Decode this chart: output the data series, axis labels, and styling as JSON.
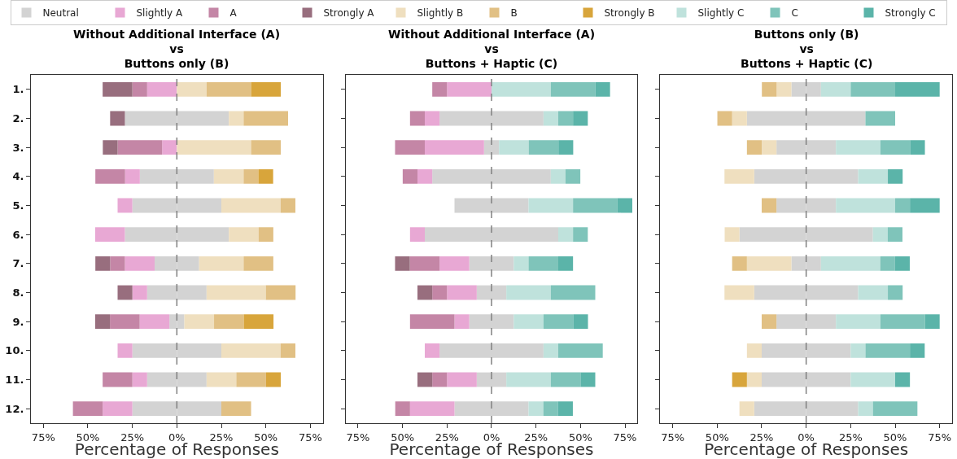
{
  "chart_data": [
    {
      "type": "bar",
      "orientation": "horizontal",
      "stacked": true,
      "title": "Without Additional Interface (A)\nvs\nButtons only (B)",
      "xlabel": "Percentage of Responses",
      "categories": [
        "1.",
        "2.",
        "3.",
        "4.",
        "5.",
        "6.",
        "7.",
        "8.",
        "9.",
        "10.",
        "11.",
        "12."
      ],
      "series": [
        {
          "name": "Neutral",
          "color": "#d3d3d3",
          "values": [
            null,
            -29.2,
            null,
            -20.8,
            -25,
            -29.2,
            -12.5,
            -16.7,
            -4.2,
            -25,
            -16.7,
            -25
          ]
        },
        {
          "name": "Slightly A",
          "color": "#e8a8d4",
          "values": [
            -16.7,
            null,
            -8.3,
            -8.3,
            -8.3,
            -16.7,
            -16.7,
            -8.3,
            -16.7,
            -8.3,
            -8.3,
            -16.7
          ]
        },
        {
          "name": "A",
          "color": "#c486a6",
          "values": [
            -8.3,
            null,
            -25,
            -16.7,
            null,
            null,
            -8.3,
            null,
            -16.7,
            null,
            -16.7,
            -16.7
          ]
        },
        {
          "name": "Strongly A",
          "color": "#986e7e",
          "values": [
            -16.7,
            -8.3,
            -8.3,
            null,
            null,
            null,
            -8.3,
            -8.3,
            -8.3,
            null,
            null,
            null
          ]
        },
        {
          "color": "#d3d3d3",
          "values": [
            null,
            29.2,
            null,
            20.8,
            25,
            29.2,
            12.5,
            16.7,
            4.2,
            25,
            16.7,
            25
          ]
        },
        {
          "name": "Slightly B",
          "color": "#efdfbf",
          "values": [
            16.7,
            8.3,
            41.7,
            16.7,
            33.3,
            16.7,
            25,
            33.3,
            16.7,
            33.3,
            16.7,
            null
          ]
        },
        {
          "name": "B",
          "color": "#e1c084",
          "values": [
            25,
            25,
            16.7,
            8.3,
            8.3,
            8.3,
            16.7,
            16.7,
            16.7,
            8.3,
            16.7,
            16.7
          ]
        },
        {
          "name": "Strongly B",
          "color": "#d8a53b",
          "values": [
            16.7,
            null,
            null,
            8.3,
            null,
            null,
            null,
            null,
            16.7,
            null,
            8.3,
            null
          ]
        }
      ],
      "xlim": [
        -82,
        82
      ],
      "xticks": [
        {
          "value": -75,
          "label": "75%"
        },
        {
          "value": -50,
          "label": "50%"
        },
        {
          "value": -25,
          "label": "25%"
        },
        {
          "value": 0,
          "label": "0%"
        },
        {
          "value": 25,
          "label": "25%"
        },
        {
          "value": 50,
          "label": "50%"
        },
        {
          "value": 75,
          "label": "75%"
        }
      ],
      "ref_lines": [
        {
          "axis": "x",
          "value": 0,
          "color": "#808080",
          "line_style": "dashed"
        }
      ],
      "legend": "top"
    },
    {
      "type": "bar",
      "orientation": "horizontal",
      "stacked": true,
      "title": "Without Additional Interface (A)\nvs\nButtons + Haptic (C)",
      "xlabel": "Percentage of Responses",
      "categories": [
        "1.",
        "2.",
        "3.",
        "4.",
        "5.",
        "6.",
        "7.",
        "8.",
        "9.",
        "10.",
        "11.",
        "12."
      ],
      "series": [
        {
          "color": "#d3d3d3",
          "values": [
            null,
            -29.2,
            -4.2,
            -33.3,
            -20.8,
            -37.5,
            -12.5,
            -8.3,
            -12.5,
            -29.2,
            -8.3,
            -20.8
          ]
        },
        {
          "color": "#e8a8d4",
          "values": [
            -25,
            -8.3,
            -33.3,
            -8.3,
            null,
            -8.3,
            -16.7,
            -16.7,
            -8.3,
            -8.3,
            -16.7,
            -25
          ]
        },
        {
          "color": "#c486a6",
          "values": [
            -8.3,
            -8.3,
            -16.7,
            -8.3,
            null,
            null,
            -16.7,
            -8.3,
            -25,
            null,
            -8.3,
            -8.3
          ]
        },
        {
          "color": "#986e7e",
          "values": [
            null,
            null,
            null,
            null,
            null,
            null,
            -8.3,
            -8.3,
            null,
            null,
            -8.3,
            null
          ]
        },
        {
          "color": "#d3d3d3",
          "values": [
            null,
            29.2,
            4.2,
            33.3,
            20.8,
            37.5,
            12.5,
            8.3,
            12.5,
            29.2,
            8.3,
            20.8
          ]
        },
        {
          "name": "Slightly C",
          "color": "#bfe2dc",
          "values": [
            33.3,
            8.3,
            16.7,
            8.3,
            25,
            8.3,
            8.3,
            25,
            16.7,
            8.3,
            25,
            8.3
          ]
        },
        {
          "name": "C",
          "color": "#7fc4ba",
          "values": [
            25,
            8.3,
            16.7,
            8.3,
            25,
            8.3,
            16.7,
            25,
            16.7,
            25,
            16.7,
            8.3
          ]
        },
        {
          "name": "Strongly C",
          "color": "#5bb4a9",
          "values": [
            8.3,
            8.3,
            8.3,
            null,
            8.3,
            null,
            8.3,
            null,
            8.3,
            null,
            8.3,
            8.3
          ]
        }
      ],
      "xlim": [
        -82,
        82
      ],
      "xticks": [
        {
          "value": -75,
          "label": "75%"
        },
        {
          "value": -50,
          "label": "50%"
        },
        {
          "value": -25,
          "label": "25%"
        },
        {
          "value": 0,
          "label": "0%"
        },
        {
          "value": 25,
          "label": "25%"
        },
        {
          "value": 50,
          "label": "50%"
        },
        {
          "value": 75,
          "label": "75%"
        }
      ],
      "ref_lines": [
        {
          "axis": "x",
          "value": 0,
          "color": "#808080",
          "line_style": "dashed"
        }
      ],
      "legend": "top",
      "tick_labels": "x"
    },
    {
      "type": "bar",
      "orientation": "horizontal",
      "stacked": true,
      "title": "Buttons only (B)\nvs\nButtons + Haptic (C)",
      "xlabel": "Percentage of Responses",
      "categories": [
        "1.",
        "2.",
        "3.",
        "4.",
        "5.",
        "6.",
        "7.",
        "8.",
        "9.",
        "10.",
        "11.",
        "12."
      ],
      "series": [
        {
          "color": "#d3d3d3",
          "values": [
            -8.3,
            -33.3,
            -16.7,
            -29.2,
            -16.7,
            -37.5,
            -8.3,
            -29.2,
            -16.7,
            -25,
            -25,
            -29.2
          ]
        },
        {
          "color": "#efdfbf",
          "values": [
            -8.3,
            -8.3,
            -8.3,
            -16.7,
            null,
            -8.3,
            -25,
            -16.7,
            null,
            -8.3,
            -8.3,
            -8.3
          ]
        },
        {
          "color": "#e1c084",
          "values": [
            -8.3,
            -8.3,
            -8.3,
            null,
            -8.3,
            null,
            -8.3,
            null,
            -8.3,
            null,
            null,
            null
          ]
        },
        {
          "color": "#d8a53b",
          "values": [
            null,
            null,
            null,
            null,
            null,
            null,
            null,
            null,
            null,
            null,
            -8.3,
            null
          ]
        },
        {
          "color": "#d3d3d3",
          "values": [
            8.3,
            33.3,
            16.7,
            29.2,
            16.7,
            37.5,
            8.3,
            29.2,
            16.7,
            25,
            25,
            29.2
          ]
        },
        {
          "color": "#bfe2dc",
          "values": [
            16.7,
            null,
            25,
            16.7,
            33.3,
            8.3,
            33.3,
            16.7,
            25,
            8.3,
            25,
            8.3
          ]
        },
        {
          "color": "#7fc4ba",
          "values": [
            25,
            16.7,
            16.7,
            null,
            8.3,
            8.3,
            8.3,
            8.3,
            25,
            25,
            null,
            25
          ]
        },
        {
          "color": "#5bb4a9",
          "values": [
            25,
            null,
            8.3,
            8.3,
            16.7,
            null,
            8.3,
            null,
            8.3,
            8.3,
            8.3,
            null
          ]
        }
      ],
      "xlim": [
        -82,
        82
      ],
      "xticks": [
        {
          "value": -75,
          "label": "75%"
        },
        {
          "value": -50,
          "label": "50%"
        },
        {
          "value": -25,
          "label": "25%"
        },
        {
          "value": 0,
          "label": "0%"
        },
        {
          "value": 25,
          "label": "25%"
        },
        {
          "value": 50,
          "label": "50%"
        },
        {
          "value": 75,
          "label": "75%"
        }
      ],
      "ref_lines": [
        {
          "axis": "x",
          "value": 0,
          "color": "#808080",
          "line_style": "dashed"
        }
      ],
      "tick_labels": "x"
    }
  ]
}
